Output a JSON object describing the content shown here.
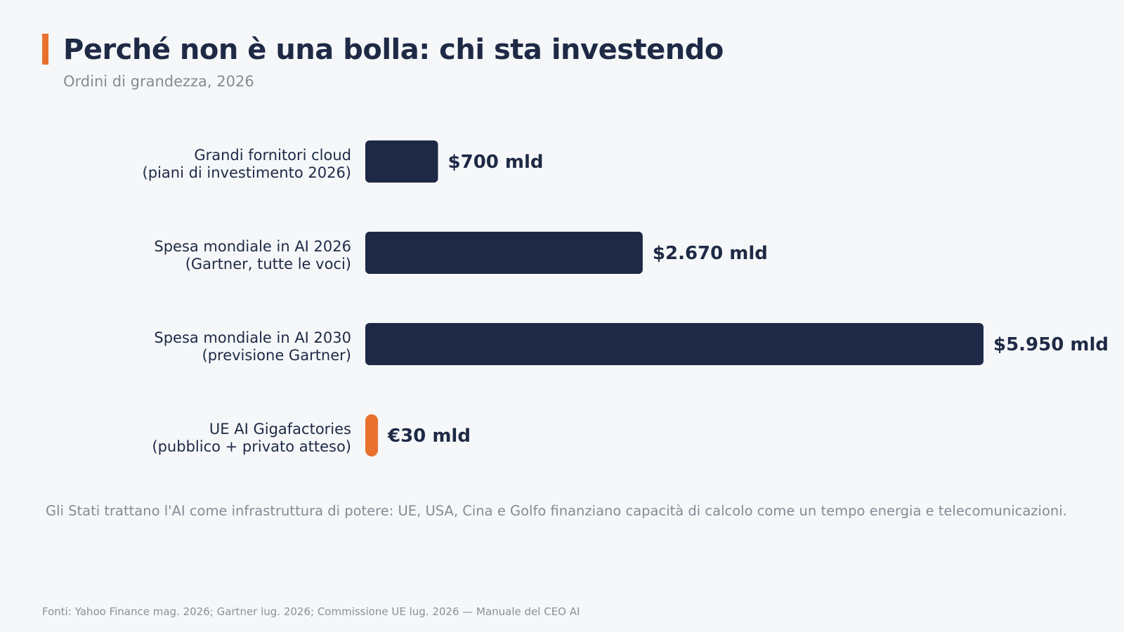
{
  "header": {
    "title": "Perché non è una bolla: chi sta investendo",
    "subtitle": "Ordini di grandezza, 2026"
  },
  "colors": {
    "bar_primary": "#1e2a45",
    "bar_highlight": "#e8712e",
    "accent": "#e8712e"
  },
  "chart_data": {
    "type": "bar",
    "orientation": "horizontal",
    "title": "Perché non è una bolla: chi sta investendo",
    "subtitle": "Ordini di grandezza, 2026",
    "categories": [
      [
        "Grandi fornitori cloud",
        "(piani di investimento 2026)"
      ],
      [
        "Spesa mondiale in AI 2026",
        "(Gartner, tutte le voci)"
      ],
      [
        "Spesa mondiale in AI 2030",
        "(previsione Gartner)"
      ],
      [
        "UE AI Gigafactories",
        "(pubblico + privato atteso)"
      ]
    ],
    "values": [
      700,
      2670,
      5950,
      30
    ],
    "value_labels": [
      "$700 mld",
      "$2.670 mld",
      "$5.950 mld",
      "€30 mld"
    ],
    "highlight_index": 3,
    "xlim": [
      0,
      5950
    ],
    "grid": false,
    "legend": "none"
  },
  "note": "Gli Stati trattano l'AI come infrastruttura di potere: UE, USA, Cina e Golfo finanziano capacità di calcolo come un tempo energia e telecomunicazioni.",
  "source": "Fonti: Yahoo Finance mag. 2026; Gartner lug. 2026; Commissione UE lug. 2026 — Manuale del CEO AI"
}
